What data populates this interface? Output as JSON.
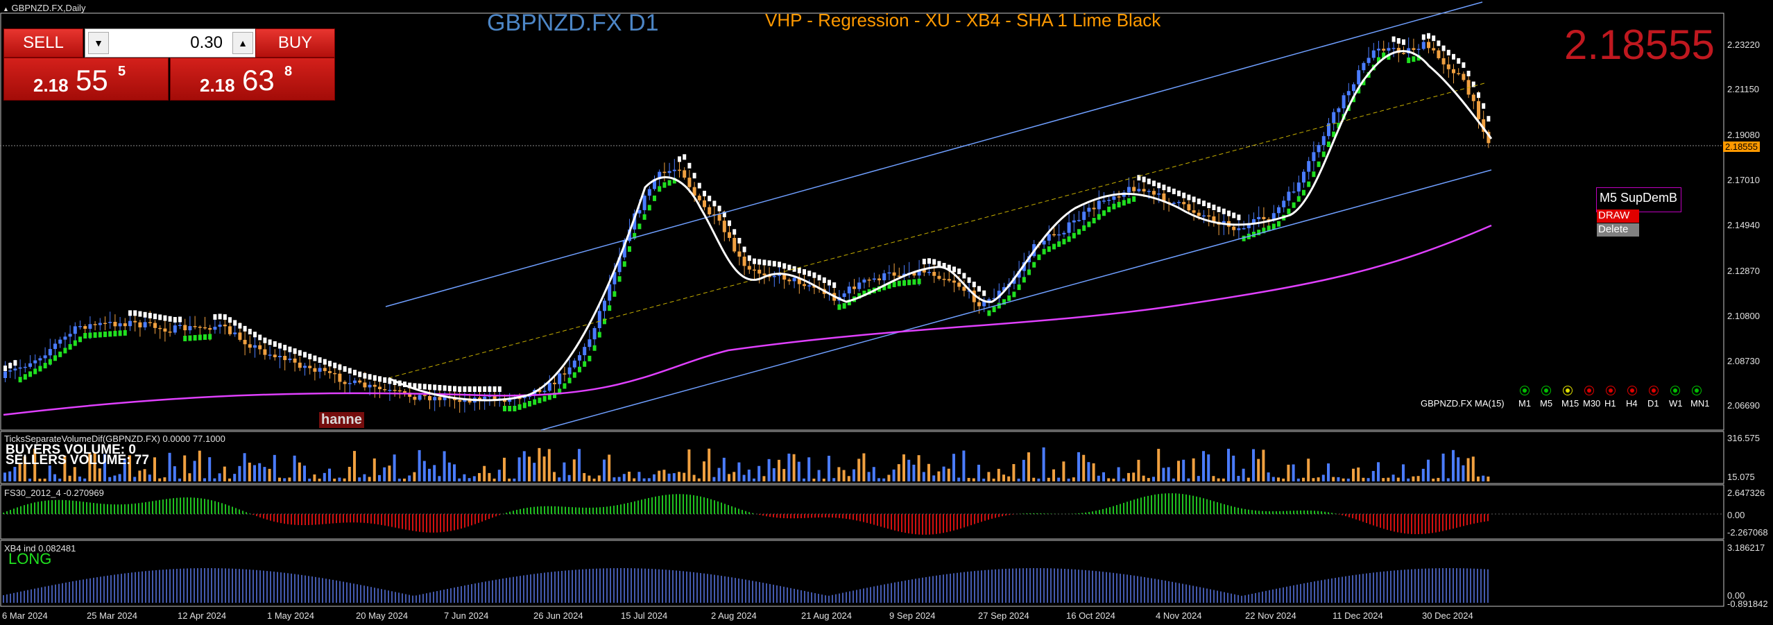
{
  "window_title": "GBPNZD.FX,Daily",
  "chart_symbol_title": "GBPNZD.FX D1",
  "indicator_title": "VHP - Regression - XU - XB4 - SHA 1 Lime  Black",
  "big_price": "2.18555",
  "trade_panel": {
    "sell_label": "SELL",
    "buy_label": "BUY",
    "lot": "0.30",
    "sell_price": {
      "small": "2.18",
      "big": "55",
      "sup": "5"
    },
    "buy_price": {
      "small": "2.18",
      "big": "63",
      "sup": "8"
    }
  },
  "price_axis": {
    "labels": [
      "2.23220",
      "2.21150",
      "2.19080",
      "2.17010",
      "2.14940",
      "2.12870",
      "2.10800",
      "2.08730",
      "2.06690"
    ],
    "current_price_tag": "2.18555"
  },
  "date_axis": [
    "6 Mar 2024",
    "25 Mar 2024",
    "12 Apr 2024",
    "1 May 2024",
    "20 May 2024",
    "7 Jun 2024",
    "26 Jun 2024",
    "15 Jul 2024",
    "2 Aug 2024",
    "21 Aug 2024",
    "9 Sep 2024",
    "27 Sep 2024",
    "16 Oct 2024",
    "4 Nov 2024",
    "22 Nov 2024",
    "11 Dec 2024",
    "30 Dec 2024"
  ],
  "ma_label": "GBPNZD.FX MA(15)",
  "timeframes": [
    {
      "name": "M1",
      "color": "#00c000"
    },
    {
      "name": "M5",
      "color": "#00c000"
    },
    {
      "name": "M15",
      "color": "#e0e000"
    },
    {
      "name": "M30",
      "color": "#e00000"
    },
    {
      "name": "H1",
      "color": "#e00000"
    },
    {
      "name": "H4",
      "color": "#e00000"
    },
    {
      "name": "D1",
      "color": "#e00000"
    },
    {
      "name": "W1",
      "color": "#00c000"
    },
    {
      "name": "MN1",
      "color": "#00c000"
    }
  ],
  "supdem": {
    "title": "M5 SupDemB",
    "draw_label": "DRAW",
    "delete_label": "Delete"
  },
  "hanne_label": "hanne",
  "volume_panel": {
    "title": "TicksSeparateVolumeDif(GBPNZD.FX) 0.0000 77.1000",
    "buyers": "BUYERS VOLUME: 0",
    "sellers": "SELLERS VOLUME: 77",
    "axis_top": "316.575",
    "axis_bottom": "15.075"
  },
  "fs30_panel": {
    "title": "FS30_2012_4 -0.270969",
    "axis_top": "2.647326",
    "axis_mid": "0.00",
    "axis_bottom": "-2.267068"
  },
  "xb4_panel": {
    "title": "XB4 ind 0.082481",
    "signal": "LONG",
    "axis_top": "3.186217",
    "axis_mid": "0.00",
    "axis_bottom": "-0.891842"
  },
  "colors": {
    "bull_candle": "#4a7cff",
    "bear_candle": "#f0a040",
    "regression_channel": "#6f9fff",
    "ma_line": "#e040ff",
    "up_trail": "#20e020",
    "down_trail": "#ffffff",
    "title_blue": "#4d86c6",
    "title_orange": "#ff9900",
    "big_price_red": "#c0181f"
  }
}
